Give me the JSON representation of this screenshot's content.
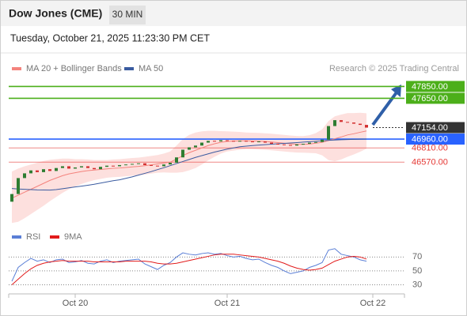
{
  "chart_data": [
    {
      "type": "candlestick",
      "title": "Dow Jones (CME)",
      "interval": "30 MIN",
      "subtitle": "Tuesday, October 21, 2025 11:23:30 PM CET",
      "source": "Research © 2025 Trading Central",
      "up_color": "#2e7d32",
      "down_color": "#d32f2f",
      "categories": [
        null,
        null,
        null,
        null,
        null,
        null,
        null,
        null,
        null,
        null,
        "Oct 20",
        null,
        null,
        null,
        null,
        null,
        null,
        null,
        null,
        null,
        null,
        null,
        null,
        null,
        null,
        null,
        null,
        null,
        null,
        null,
        null,
        null,
        null,
        null,
        "Oct 21",
        null,
        null,
        null,
        null,
        null,
        null,
        null,
        null,
        null,
        null,
        null,
        null,
        null,
        null,
        null,
        null,
        null,
        null,
        null,
        null,
        null,
        null,
        "Oct 22"
      ],
      "open": [
        45900,
        46030,
        46300,
        46380,
        46430,
        46400,
        46450,
        46420,
        46470,
        46500,
        46460,
        46480,
        46500,
        46470,
        46450,
        46490,
        46510,
        46500,
        46520,
        46530,
        46540,
        46550,
        46520,
        46510,
        46500,
        46530,
        46560,
        46650,
        46780,
        46820,
        46850,
        46900,
        46930,
        46920,
        46940,
        46930,
        46920,
        46930,
        46920,
        46910,
        46920,
        46900,
        46880,
        46870,
        46860,
        46850,
        46870,
        46880,
        46900,
        46910,
        46950,
        47180,
        47280,
        47250,
        47240,
        47220,
        47200,
        null
      ],
      "close": [
        46030,
        46300,
        46380,
        46430,
        46400,
        46450,
        46420,
        46470,
        46500,
        46460,
        46480,
        46500,
        46470,
        46450,
        46490,
        46510,
        46500,
        46520,
        46530,
        46540,
        46550,
        46520,
        46510,
        46500,
        46530,
        46560,
        46650,
        46780,
        46820,
        46850,
        46900,
        46930,
        46920,
        46940,
        46930,
        46920,
        46930,
        46920,
        46910,
        46920,
        46900,
        46880,
        46870,
        46860,
        46850,
        46870,
        46880,
        46900,
        46910,
        46950,
        47180,
        47280,
        47250,
        47240,
        47220,
        47200,
        47154,
        null
      ],
      "series": [
        {
          "name": "MA 20 + Bollinger Bands",
          "color": "#f4837d",
          "band_color": "#fde0de",
          "values": [
            45960,
            46010,
            46060,
            46110,
            46160,
            46210,
            46260,
            46300,
            46340,
            46370,
            46390,
            46410,
            46425,
            46435,
            46445,
            46455,
            46465,
            46470,
            46480,
            46490,
            46497,
            46510,
            46525,
            46540,
            46555,
            46570,
            46620,
            46680,
            46730,
            46770,
            46810,
            46850,
            46880,
            46905,
            46920,
            46925,
            46930,
            46930,
            46928,
            46924,
            46918,
            46910,
            46900,
            46890,
            46880,
            46872,
            46870,
            46875,
            46890,
            46905,
            46935,
            46965,
            46995,
            47030,
            47050,
            47075,
            47097,
            null
          ],
          "upper": [
            46410,
            46460,
            46500,
            46530,
            46560,
            46590,
            46610,
            46620,
            46630,
            46630,
            46620,
            46620,
            46615,
            46605,
            46605,
            46605,
            46615,
            46620,
            46630,
            46640,
            46647,
            46660,
            46675,
            46690,
            46715,
            46750,
            46850,
            46960,
            47030,
            47070,
            47090,
            47100,
            47100,
            47095,
            47090,
            47085,
            47080,
            47070,
            47068,
            47064,
            47058,
            47050,
            47040,
            47030,
            47020,
            47012,
            47010,
            47025,
            47060,
            47125,
            47265,
            47345,
            47375,
            47400,
            47400,
            47405,
            47397,
            null
          ],
          "lower": [
            45540,
            45560,
            45620,
            45690,
            45760,
            45830,
            45910,
            45980,
            46050,
            46110,
            46160,
            46200,
            46235,
            46265,
            46285,
            46305,
            46315,
            46320,
            46330,
            46340,
            46347,
            46360,
            46375,
            46390,
            46395,
            46390,
            46390,
            46400,
            46430,
            46470,
            46530,
            46600,
            46660,
            46715,
            46750,
            46765,
            46780,
            46790,
            46788,
            46784,
            46778,
            46770,
            46760,
            46750,
            46740,
            46732,
            46730,
            46725,
            46720,
            46685,
            46605,
            46585,
            46615,
            46660,
            46700,
            46745,
            46797,
            null
          ]
        },
        {
          "name": "MA 50",
          "color": "#3a5ba0",
          "values": [
            46123,
            46115,
            46110,
            46105,
            46100,
            46098,
            46097,
            46105,
            46120,
            46135,
            46150,
            46163,
            46178,
            46195,
            46215,
            46235,
            46255,
            46270,
            46295,
            46320,
            46350,
            46380,
            46410,
            46443,
            46475,
            46510,
            46545,
            46580,
            46615,
            46650,
            46680,
            46710,
            46740,
            46765,
            46790,
            46810,
            46830,
            46840,
            46850,
            46858,
            46866,
            46874,
            46880,
            46887,
            46894,
            46901,
            46908,
            46915,
            46922,
            46930,
            46938,
            46944,
            46948,
            46952,
            46955,
            46958,
            46960,
            null
          ]
        }
      ],
      "levels": [
        {
          "value": 47850,
          "label": "47850.00",
          "color": "#4caf1a",
          "kind": "box"
        },
        {
          "value": 47650,
          "label": "47650.00",
          "color": "#4caf1a",
          "kind": "box"
        },
        {
          "value": 47154,
          "label": "47154.00",
          "color": "#333333",
          "kind": "last"
        },
        {
          "value": 46960,
          "label": "46960.00",
          "color": "#2962ff",
          "kind": "box"
        },
        {
          "value": 46810,
          "label": "46810.00",
          "color": "#e53935",
          "kind": "text"
        },
        {
          "value": 46570,
          "label": "46570.00",
          "color": "#e53935",
          "kind": "text"
        }
      ],
      "ylim": [
        45530,
        48030
      ]
    },
    {
      "type": "line",
      "series": [
        {
          "name": "RSI",
          "color": "#5b7fd6",
          "values": [
            35,
            55,
            62,
            68,
            64,
            66,
            62,
            66,
            67,
            62,
            63,
            65,
            61,
            60,
            64,
            66,
            62,
            64,
            65,
            66,
            67,
            60,
            56,
            52,
            58,
            62,
            70,
            76,
            74,
            73,
            75,
            76,
            74,
            75,
            72,
            70,
            71,
            68,
            66,
            67,
            62,
            58,
            55,
            50,
            46,
            48,
            50,
            55,
            58,
            62,
            80,
            82,
            74,
            72,
            70,
            66,
            64,
            null
          ]
        },
        {
          "name": "9MA",
          "color": "#e21b1b",
          "values": [
            30,
            38,
            46,
            53,
            58,
            61,
            63,
            64,
            65,
            64,
            64,
            64,
            64,
            63,
            63,
            63,
            63,
            63,
            64,
            64,
            64,
            64,
            63,
            61,
            60,
            60,
            61,
            63,
            65,
            67,
            69,
            71,
            73,
            74,
            74,
            74,
            73,
            72,
            71,
            70,
            68,
            66,
            64,
            61,
            57,
            54,
            52,
            51,
            52,
            54,
            59,
            64,
            67,
            70,
            71,
            70,
            67,
            null
          ]
        }
      ],
      "ylim": [
        18,
        92
      ],
      "yticks": [
        30,
        50,
        70
      ]
    }
  ]
}
